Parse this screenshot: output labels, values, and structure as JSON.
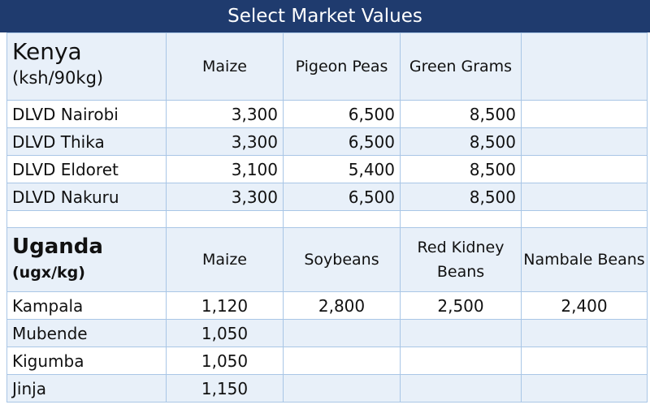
{
  "title": "Select Market Values",
  "kenya": {
    "name": "Kenya",
    "unit": "(ksh/90kg)",
    "columns": [
      "Maize",
      "Pigeon Peas",
      "Green Grams"
    ],
    "rows": [
      {
        "location": "DLVD Nairobi",
        "values": [
          "3,300",
          "6,500",
          "8,500"
        ]
      },
      {
        "location": "DLVD Thika",
        "values": [
          "3,300",
          "6,500",
          "8,500"
        ]
      },
      {
        "location": "DLVD Eldoret",
        "values": [
          "3,100",
          "5,400",
          "8,500"
        ]
      },
      {
        "location": "DLVD Nakuru",
        "values": [
          "3,300",
          "6,500",
          "8,500"
        ]
      }
    ]
  },
  "uganda": {
    "name": "Uganda",
    "unit": "(ugx/kg)",
    "columns": [
      "Maize",
      "Soybeans",
      "Red Kidney Beans",
      "Nambale Beans"
    ],
    "rows": [
      {
        "location": "Kampala",
        "values": [
          "1,120",
          "2,800",
          "2,500",
          "2,400"
        ]
      },
      {
        "location": "Mubende",
        "values": [
          "1,050",
          "",
          "",
          ""
        ]
      },
      {
        "location": "Kigumba",
        "values": [
          "1,050",
          "",
          "",
          ""
        ]
      },
      {
        "location": "Jinja",
        "values": [
          "1,150",
          "",
          "",
          ""
        ]
      }
    ]
  }
}
